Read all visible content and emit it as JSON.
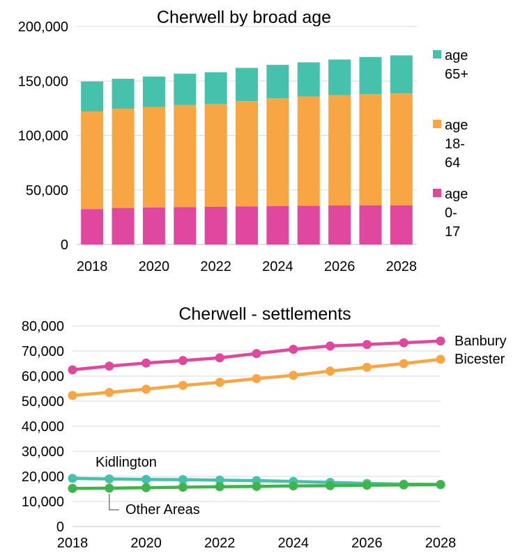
{
  "chart_data": [
    {
      "type": "bar",
      "stacked": true,
      "title": "Cherwell  by broad age",
      "categories": [
        "2018",
        "2019",
        "2020",
        "2021",
        "2022",
        "2023",
        "2024",
        "2025",
        "2026",
        "2027",
        "2028"
      ],
      "x_tick_labels": [
        "2018",
        "2020",
        "2022",
        "2024",
        "2026",
        "2028"
      ],
      "ylim": [
        0,
        200000
      ],
      "y_tick_labels": [
        "0",
        "50,000",
        "100,000",
        "150,000",
        "200,000"
      ],
      "grid": "horizontal",
      "legend_position": "right",
      "series": [
        {
          "name": "age 0-17",
          "legend_lines": [
            "age",
            "0-",
            "17"
          ],
          "color": "#E0479E",
          "values": [
            32500,
            33500,
            34000,
            34300,
            34500,
            35000,
            35300,
            35600,
            35800,
            36000,
            36000
          ]
        },
        {
          "name": "age 18-64",
          "legend_lines": [
            "age",
            "18-",
            "64"
          ],
          "color": "#F7A643",
          "values": [
            89500,
            91000,
            92000,
            93700,
            94500,
            96500,
            98700,
            100200,
            101200,
            102000,
            102500
          ]
        },
        {
          "name": "age 65+",
          "legend_lines": [
            "age",
            "65+"
          ],
          "color": "#46C1AB",
          "values": [
            27500,
            27500,
            28000,
            28700,
            29000,
            30500,
            30800,
            31300,
            32700,
            34000,
            35000
          ]
        }
      ]
    },
    {
      "type": "line",
      "title": "Cherwell - settlements",
      "x": [
        2018,
        2019,
        2020,
        2021,
        2022,
        2023,
        2024,
        2025,
        2026,
        2027,
        2028
      ],
      "x_tick_labels": [
        "2018",
        "2020",
        "2022",
        "2024",
        "2026",
        "2028"
      ],
      "ylim": [
        0,
        80000
      ],
      "y_tick_labels": [
        "0",
        "10,000",
        "20,000",
        "30,000",
        "40,000",
        "50,000",
        "60,000",
        "70,000",
        "80,000"
      ],
      "grid": "horizontal",
      "series": [
        {
          "name": "Banbury",
          "color": "#E0479E",
          "values": [
            62500,
            64000,
            65200,
            66200,
            67300,
            69000,
            70700,
            72000,
            72600,
            73300,
            74000
          ]
        },
        {
          "name": "Bicester",
          "color": "#F7A643",
          "values": [
            52300,
            53500,
            54800,
            56300,
            57500,
            59000,
            60300,
            62000,
            63500,
            65000,
            66700
          ]
        },
        {
          "name": "Kidlington",
          "color": "#46C1AB",
          "values": [
            19200,
            19000,
            18800,
            18700,
            18500,
            18300,
            18000,
            17600,
            17200,
            16900,
            16800
          ]
        },
        {
          "name": "Other Areas",
          "color": "#3EB54A",
          "values": [
            15200,
            15300,
            15500,
            15700,
            15900,
            16000,
            16200,
            16300,
            16500,
            16600,
            16700
          ]
        }
      ]
    }
  ]
}
